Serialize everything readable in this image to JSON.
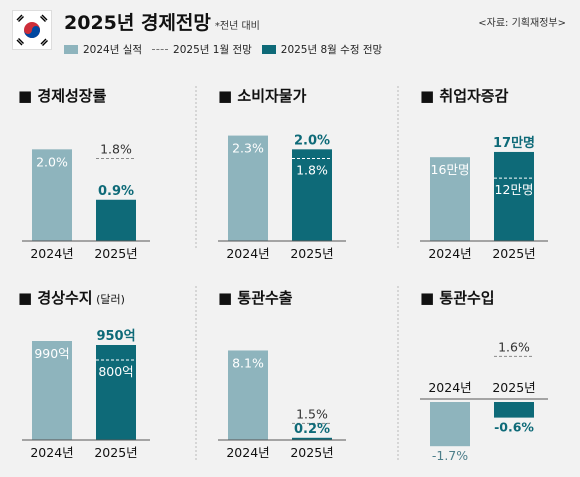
{
  "header": {
    "title": "2025년 경제전망",
    "note": "*전년 대비",
    "source": "<자료: 기획재정부>",
    "legend": {
      "actual_2024": "2024년 실적",
      "forecast_jan": "2025년 1월 전망",
      "forecast_aug": "2025년 8월 수정 전망"
    }
  },
  "colors": {
    "actual_2024": "#8eb4bd",
    "forecast_aug": "#0e6a78",
    "forecast_jan_line": "#8a8a8a",
    "background": "#f2f2f2"
  },
  "chart_data": [
    {
      "type": "bar",
      "title": "경제성장률",
      "unit": "%",
      "categories": [
        "2024년",
        "2025년"
      ],
      "actual_2024": 2.0,
      "forecast_jan": 1.8,
      "forecast_aug": 0.9,
      "labels": {
        "actual_2024": "2.0%",
        "forecast_jan": "1.8%",
        "forecast_aug": "0.9%"
      },
      "ylim": [
        0,
        2.4
      ]
    },
    {
      "type": "bar",
      "title": "소비자물가",
      "unit": "%",
      "categories": [
        "2024년",
        "2025년"
      ],
      "actual_2024": 2.3,
      "forecast_jan": 1.8,
      "forecast_aug": 2.0,
      "labels": {
        "actual_2024": "2.3%",
        "forecast_jan": "1.8%",
        "forecast_aug": "2.0%"
      },
      "ylim": [
        0,
        2.4
      ]
    },
    {
      "type": "bar",
      "title": "취업자증감",
      "unit": "만명",
      "categories": [
        "2024년",
        "2025년"
      ],
      "actual_2024": 16,
      "forecast_jan": 12,
      "forecast_aug": 17,
      "labels": {
        "actual_2024": "16만명",
        "forecast_jan": "12만명",
        "forecast_aug": "17만명"
      },
      "ylim": [
        0,
        21
      ]
    },
    {
      "type": "bar",
      "title": "경상수지",
      "title_suffix": "(달러)",
      "unit": "억",
      "categories": [
        "2024년",
        "2025년"
      ],
      "actual_2024": 990,
      "forecast_jan": 800,
      "forecast_aug": 950,
      "labels": {
        "actual_2024": "990억",
        "forecast_jan": "800억",
        "forecast_aug": "950억"
      },
      "ylim": [
        0,
        1050
      ]
    },
    {
      "type": "bar",
      "title": "통관수출",
      "unit": "%",
      "categories": [
        "2024년",
        "2025년"
      ],
      "actual_2024": 8.1,
      "forecast_jan": 1.5,
      "forecast_aug": 0.2,
      "labels": {
        "actual_2024": "8.1%",
        "forecast_jan": "1.5%",
        "forecast_aug": "0.2%"
      },
      "ylim": [
        0,
        9.5
      ]
    },
    {
      "type": "bar",
      "title": "통관수입",
      "unit": "%",
      "categories": [
        "2024년",
        "2025년"
      ],
      "actual_2024": -1.7,
      "forecast_jan": 1.6,
      "forecast_aug": -0.6,
      "labels": {
        "actual_2024": "-1.7%",
        "forecast_jan": "1.6%",
        "forecast_aug": "-0.6%"
      },
      "ylim": [
        -2.0,
        2.0
      ]
    }
  ]
}
